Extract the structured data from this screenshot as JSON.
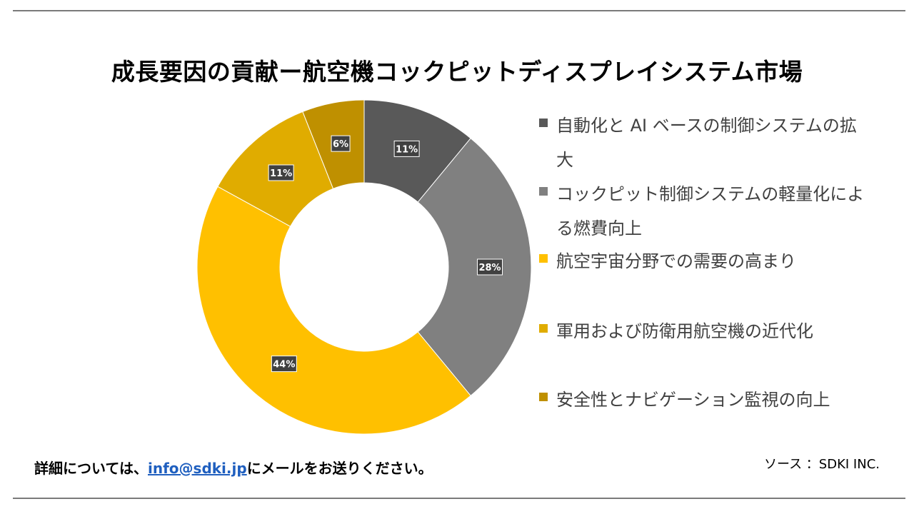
{
  "title": "成長要因の貢献ー航空機コックピットディスプレイシステム市場",
  "chart_data": {
    "type": "donut",
    "series": [
      {
        "label": "自動化と AI ベースの制御システムの拡大",
        "value": 11,
        "display": "11%",
        "color": "#595959"
      },
      {
        "label": "コックピット制御システムの軽量化による燃費向上",
        "value": 28,
        "display": "28%",
        "color": "#808080"
      },
      {
        "label": "航空宇宙分野での需要の高まり",
        "value": 44,
        "display": "44%",
        "color": "#ffc000"
      },
      {
        "label": "軍用および防衛用航空機の近代化",
        "value": 11,
        "display": "11%",
        "color": "#e0ac00"
      },
      {
        "label": "安全性とナビゲーション監視の向上",
        "value": 6,
        "display": "6%",
        "color": "#bf9000"
      }
    ],
    "legend_position": "right"
  },
  "footer": {
    "contact_prefix": "詳細については、",
    "email": "info@sdki.jp",
    "contact_suffix": "にメールをお送りください。",
    "source": "ソース ：SDKI INC."
  }
}
